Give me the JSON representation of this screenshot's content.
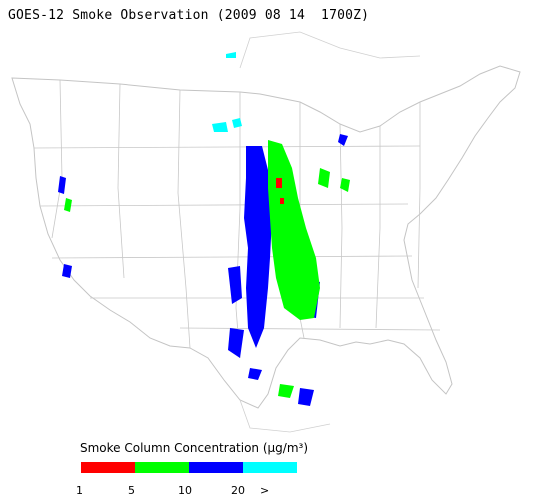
{
  "title": "GOES-12 Smoke Observation (2009 08 14  1700Z)",
  "legend": {
    "title": "Smoke Column Concentration (μg/m³)",
    "bins": [
      {
        "label": "1",
        "color": "#ff0000"
      },
      {
        "label": "5",
        "color": "#00ff00"
      },
      {
        "label": "10",
        "color": "#0000ff"
      },
      {
        "label": "20",
        "color": "#00ffff"
      }
    ],
    "end_label": ">"
  },
  "map": {
    "region": "Contiguous United States",
    "land_color": "#ffffff",
    "boundary_color": "#c0c0c0"
  }
}
